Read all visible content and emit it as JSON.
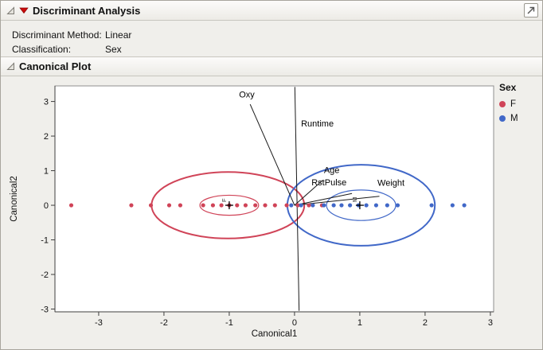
{
  "header": {
    "title": "Discriminant Analysis",
    "icons": {
      "disclosure": "open-triangle",
      "menu": "red-triangle",
      "popout": "arrow-box"
    }
  },
  "info": {
    "rows": [
      {
        "label": "Discriminant Method:",
        "value": "Linear"
      },
      {
        "label": "Classification:",
        "value": "Sex"
      }
    ]
  },
  "section": {
    "title": "Canonical Plot"
  },
  "legend": {
    "title": "Sex",
    "items": [
      {
        "label": "F",
        "color": "#D04458"
      },
      {
        "label": "M",
        "color": "#4168C8"
      }
    ]
  },
  "chart_data": {
    "type": "scatter",
    "title": "Canonical Plot",
    "xlabel": "Canonical1",
    "ylabel": "Canonical2",
    "xlim": [
      -3.67,
      3.05
    ],
    "ylim": [
      -3.08,
      3.45
    ],
    "xticks": [
      -3,
      -2,
      -1,
      0,
      1,
      2,
      3
    ],
    "yticks": [
      -3,
      -2,
      -1,
      0,
      1,
      2,
      3
    ],
    "series": [
      {
        "name": "F",
        "color": "#D04458",
        "points": [
          [
            -3.42,
            0
          ],
          [
            -2.5,
            0
          ],
          [
            -2.2,
            0
          ],
          [
            -1.92,
            0
          ],
          [
            -1.75,
            0
          ],
          [
            -1.4,
            0
          ],
          [
            -1.25,
            0
          ],
          [
            -1.12,
            0
          ],
          [
            -1.0,
            0
          ],
          [
            -0.88,
            0
          ],
          [
            -0.75,
            0
          ],
          [
            -0.6,
            0
          ],
          [
            -0.45,
            0
          ],
          [
            -0.3,
            0
          ],
          [
            -0.12,
            0
          ],
          [
            0.05,
            0
          ],
          [
            0.22,
            0
          ],
          [
            0.42,
            0
          ]
        ]
      },
      {
        "name": "M",
        "color": "#4168C8",
        "points": [
          [
            -0.05,
            0
          ],
          [
            0.1,
            0
          ],
          [
            0.28,
            0
          ],
          [
            0.45,
            0
          ],
          [
            0.6,
            0
          ],
          [
            0.72,
            0
          ],
          [
            0.85,
            0
          ],
          [
            0.98,
            0
          ],
          [
            1.1,
            0
          ],
          [
            1.25,
            0
          ],
          [
            1.42,
            0
          ],
          [
            1.58,
            0
          ],
          [
            2.1,
            0
          ],
          [
            2.42,
            0
          ],
          [
            2.6,
            0
          ]
        ]
      }
    ],
    "ellipses": [
      {
        "group": "F",
        "cx": -1.02,
        "cy": 0,
        "rx": 1.17,
        "ry": 0.96,
        "stroke": 2,
        "color": "#D04458"
      },
      {
        "group": "F",
        "cx": -1.0,
        "cy": 0,
        "rx": 0.45,
        "ry": 0.29,
        "stroke": 1.2,
        "color": "#D04458"
      },
      {
        "group": "M",
        "cx": 1.02,
        "cy": 0,
        "rx": 1.13,
        "ry": 1.17,
        "stroke": 2,
        "color": "#4168C8"
      },
      {
        "group": "M",
        "cx": 1.02,
        "cy": 0,
        "rx": 0.53,
        "ry": 0.44,
        "stroke": 1.2,
        "color": "#4168C8"
      }
    ],
    "centroids": [
      {
        "label": "F",
        "x": -1,
        "y": 0
      },
      {
        "label": "M",
        "x": 1,
        "y": 0
      }
    ],
    "rays": [
      {
        "label": "Oxy",
        "x2": -0.68,
        "y2": 2.92,
        "label_x": -0.85,
        "label_y": 3.12
      },
      {
        "label": "Runtime",
        "x1": 0.005,
        "y1": 3.42,
        "x2": 0.07,
        "y2": -3.05,
        "label_x": 0.1,
        "label_y": 2.28
      },
      {
        "label": "Age",
        "x2": 0.43,
        "y2": 0.72,
        "label_x": 0.45,
        "label_y": 0.93
      },
      {
        "label": "RstPulse",
        "x2": 0.88,
        "y2": 0.34,
        "label_x": 0.26,
        "label_y": 0.58
      },
      {
        "label": "Weight",
        "x2": 1.3,
        "y2": 0.26,
        "label_x": 1.27,
        "label_y": 0.56
      }
    ]
  }
}
